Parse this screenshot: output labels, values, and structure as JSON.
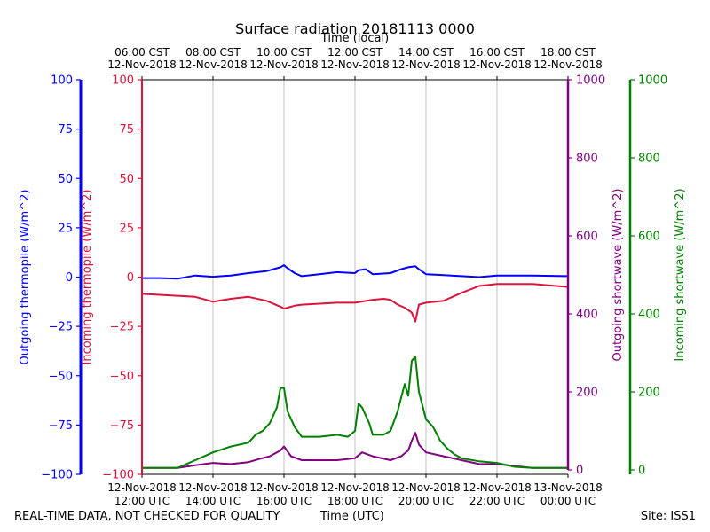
{
  "chart_data": {
    "type": "line",
    "title": "Surface radiation 20181113 0000",
    "top_axis_label": "Time (local)",
    "xlabel": "Time (UTC)",
    "footer_left": "REAL-TIME DATA, NOT CHECKED FOR QUALITY",
    "footer_right": "Site: ISS1",
    "x_range_hours_utc": [
      12,
      24
    ],
    "grid": true,
    "top_ticks": [
      {
        "hour": 12,
        "line1": "06:00 CST",
        "line2": "12-Nov-2018"
      },
      {
        "hour": 14,
        "line1": "08:00 CST",
        "line2": "12-Nov-2018"
      },
      {
        "hour": 16,
        "line1": "10:00 CST",
        "line2": "12-Nov-2018"
      },
      {
        "hour": 18,
        "line1": "12:00 CST",
        "line2": "12-Nov-2018"
      },
      {
        "hour": 20,
        "line1": "14:00 CST",
        "line2": "12-Nov-2018"
      },
      {
        "hour": 22,
        "line1": "16:00 CST",
        "line2": "12-Nov-2018"
      },
      {
        "hour": 24,
        "line1": "18:00 CST",
        "line2": "12-Nov-2018"
      }
    ],
    "bottom_ticks": [
      {
        "hour": 12,
        "line1": "12-Nov-2018",
        "line2": "12:00 UTC"
      },
      {
        "hour": 14,
        "line1": "12-Nov-2018",
        "line2": "14:00 UTC"
      },
      {
        "hour": 16,
        "line1": "12-Nov-2018",
        "line2": "16:00 UTC"
      },
      {
        "hour": 18,
        "line1": "12-Nov-2018",
        "line2": "18:00 UTC"
      },
      {
        "hour": 20,
        "line1": "12-Nov-2018",
        "line2": "20:00 UTC"
      },
      {
        "hour": 22,
        "line1": "12-Nov-2018",
        "line2": "22:00 UTC"
      },
      {
        "hour": 24,
        "line1": "13-Nov-2018",
        "line2": "00:00 UTC"
      }
    ],
    "axes": [
      {
        "id": "outgoing_thermopile",
        "label": "Outgoing thermopile (W/m^2)",
        "color": "#0000ff",
        "ylim": [
          -100,
          100
        ],
        "ticks": [
          "100",
          "75",
          "50",
          "25",
          "0",
          "−25",
          "−50",
          "−75",
          "−100"
        ],
        "side": "left-outer"
      },
      {
        "id": "incoming_thermopile",
        "label": "Incoming thermopile (W/m^2)",
        "color": "#dc143c",
        "ylim": [
          -100,
          100
        ],
        "ticks": [
          "100",
          "75",
          "50",
          "25",
          "0",
          "−25",
          "−50",
          "−75",
          "−100"
        ],
        "side": "left-inner"
      },
      {
        "id": "outgoing_shortwave",
        "label": "Outgoing shortwave (W/m^2)",
        "color": "#800080",
        "ylim": [
          0,
          1000
        ],
        "ticks": [
          "1000",
          "800",
          "600",
          "400",
          "200",
          "0"
        ],
        "side": "right-inner"
      },
      {
        "id": "incoming_shortwave",
        "label": "Incoming shortwave (W/m^2)",
        "color": "#008000",
        "ylim": [
          0,
          1000
        ],
        "ticks": [
          "1000",
          "800",
          "600",
          "400",
          "200",
          "0"
        ],
        "side": "right-outer"
      }
    ],
    "series": [
      {
        "name": "Outgoing thermopile",
        "axis": "outgoing_thermopile",
        "color": "#0000ff",
        "x": [
          12.0,
          12.5,
          13.0,
          13.5,
          14.0,
          14.5,
          15.0,
          15.5,
          15.9,
          16.0,
          16.1,
          16.3,
          16.5,
          17.0,
          17.5,
          18.0,
          18.1,
          18.3,
          18.5,
          19.0,
          19.3,
          19.5,
          19.7,
          19.8,
          20.0,
          20.5,
          21.0,
          21.5,
          22.0,
          23.0,
          24.0
        ],
        "y": [
          -0.5,
          -0.5,
          -0.8,
          0.8,
          0.2,
          0.8,
          2.0,
          3.0,
          5.0,
          6.0,
          4.5,
          2.0,
          0.5,
          1.5,
          2.5,
          2.0,
          3.5,
          4.0,
          1.5,
          2.0,
          4.0,
          5.0,
          5.5,
          4.0,
          1.5,
          1.0,
          0.5,
          0.0,
          0.8,
          0.8,
          0.5
        ]
      },
      {
        "name": "Incoming thermopile",
        "axis": "incoming_thermopile",
        "color": "#dc143c",
        "x": [
          12.0,
          12.5,
          13.0,
          13.5,
          14.0,
          14.5,
          15.0,
          15.5,
          15.9,
          16.0,
          16.3,
          16.5,
          17.0,
          17.5,
          18.0,
          18.5,
          18.8,
          19.0,
          19.2,
          19.4,
          19.6,
          19.7,
          19.8,
          20.0,
          20.5,
          21.0,
          21.5,
          22.0,
          23.0,
          24.0
        ],
        "y": [
          -8.5,
          -9.0,
          -9.5,
          -10.0,
          -12.5,
          -11.0,
          -10.0,
          -12.0,
          -15.0,
          -16.0,
          -14.5,
          -14.0,
          -13.5,
          -13.0,
          -13.0,
          -11.5,
          -11.0,
          -11.5,
          -14.0,
          -15.5,
          -18.0,
          -22.5,
          -14.0,
          -13.0,
          -12.0,
          -8.0,
          -4.5,
          -3.5,
          -3.5,
          -5.0
        ]
      },
      {
        "name": "Outgoing shortwave",
        "axis": "outgoing_shortwave",
        "color": "#800080",
        "x": [
          12.0,
          13.0,
          13.5,
          14.0,
          14.5,
          15.0,
          15.3,
          15.6,
          15.9,
          16.0,
          16.2,
          16.5,
          17.0,
          17.5,
          18.0,
          18.2,
          18.5,
          19.0,
          19.3,
          19.5,
          19.6,
          19.7,
          19.8,
          20.0,
          20.5,
          21.0,
          21.5,
          22.0,
          22.5,
          23.0,
          24.0
        ],
        "y": [
          5,
          5,
          12,
          18,
          15,
          20,
          28,
          35,
          50,
          60,
          35,
          25,
          25,
          25,
          30,
          45,
          35,
          25,
          35,
          50,
          75,
          95,
          65,
          45,
          35,
          25,
          15,
          15,
          10,
          5,
          5
        ]
      },
      {
        "name": "Incoming shortwave",
        "axis": "incoming_shortwave",
        "color": "#008000",
        "x": [
          12.0,
          13.0,
          13.5,
          14.0,
          14.5,
          15.0,
          15.2,
          15.4,
          15.6,
          15.8,
          15.9,
          16.0,
          16.1,
          16.3,
          16.5,
          17.0,
          17.5,
          17.8,
          18.0,
          18.1,
          18.2,
          18.4,
          18.5,
          18.8,
          19.0,
          19.2,
          19.4,
          19.5,
          19.6,
          19.7,
          19.8,
          20.0,
          20.2,
          20.4,
          20.6,
          20.8,
          21.0,
          21.5,
          22.0,
          22.5,
          23.0,
          24.0
        ],
        "y": [
          5,
          5,
          25,
          45,
          60,
          70,
          90,
          100,
          120,
          160,
          210,
          210,
          150,
          110,
          85,
          85,
          90,
          85,
          100,
          170,
          160,
          120,
          90,
          90,
          100,
          150,
          220,
          190,
          280,
          290,
          200,
          130,
          110,
          75,
          55,
          40,
          30,
          22,
          18,
          8,
          5,
          5
        ]
      }
    ]
  }
}
